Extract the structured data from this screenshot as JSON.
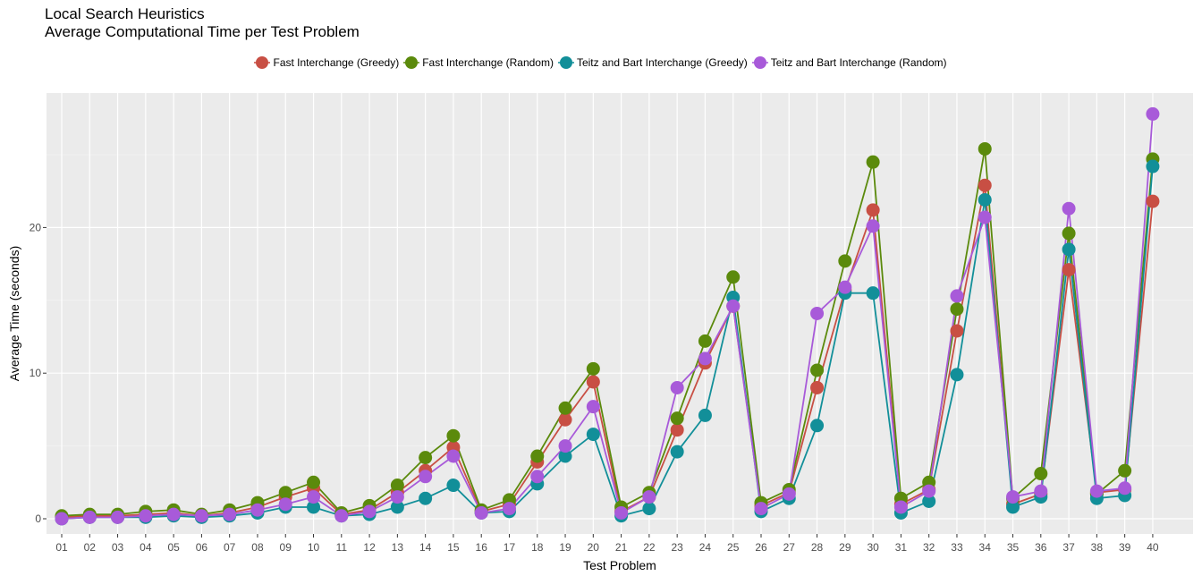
{
  "title_line1": "Local Search Heuristics",
  "title_line2": "Average Computational Time per Test Problem",
  "chart_data": {
    "type": "line",
    "title": "Local Search Heuristics\nAverage Computational Time per Test Problem",
    "xlabel": "Test Problem",
    "ylabel": "Average Time (seconds)",
    "ylim": [
      -1,
      29
    ],
    "yticks": [
      0,
      10,
      20
    ],
    "legend_position": "top",
    "grid": true,
    "categories": [
      "01",
      "02",
      "03",
      "04",
      "05",
      "06",
      "07",
      "08",
      "09",
      "10",
      "11",
      "12",
      "13",
      "14",
      "15",
      "16",
      "17",
      "18",
      "19",
      "20",
      "21",
      "22",
      "23",
      "24",
      "25",
      "26",
      "27",
      "28",
      "29",
      "30",
      "31",
      "32",
      "33",
      "34",
      "35",
      "36",
      "37",
      "38",
      "39",
      "40"
    ],
    "series": [
      {
        "name": "Fast Interchange (Greedy)",
        "color": "#c84f44",
        "values": [
          0.1,
          0.2,
          0.2,
          0.3,
          0.4,
          0.2,
          0.4,
          0.8,
          1.5,
          2.1,
          0.3,
          0.6,
          1.8,
          3.3,
          4.9,
          0.5,
          1.0,
          3.9,
          6.8,
          9.4,
          0.5,
          1.5,
          6.1,
          10.7,
          14.6,
          0.9,
          1.8,
          9.0,
          15.7,
          21.2,
          1.0,
          2.0,
          12.9,
          22.9,
          1.0,
          1.7,
          17.1,
          1.8,
          2.0,
          21.8
        ]
      },
      {
        "name": "Fast Interchange (Random)",
        "color": "#5b8a0c",
        "values": [
          0.2,
          0.3,
          0.3,
          0.5,
          0.6,
          0.3,
          0.6,
          1.1,
          1.8,
          2.5,
          0.4,
          0.9,
          2.3,
          4.2,
          5.7,
          0.6,
          1.3,
          4.3,
          7.6,
          10.3,
          0.8,
          1.8,
          6.9,
          12.2,
          16.6,
          1.1,
          2.0,
          10.2,
          17.7,
          24.5,
          1.4,
          2.5,
          14.4,
          25.4,
          1.4,
          3.1,
          19.6,
          1.7,
          3.3,
          24.7
        ]
      },
      {
        "name": "Teitz and Bart Interchange (Greedy)",
        "color": "#128f99",
        "values": [
          0.0,
          0.1,
          0.1,
          0.1,
          0.2,
          0.1,
          0.2,
          0.4,
          0.8,
          0.8,
          0.2,
          0.3,
          0.8,
          1.4,
          2.3,
          0.4,
          0.5,
          2.4,
          4.3,
          5.8,
          0.2,
          0.7,
          4.6,
          7.1,
          15.2,
          0.5,
          1.4,
          6.4,
          15.5,
          15.5,
          0.4,
          1.2,
          9.9,
          21.9,
          0.8,
          1.5,
          18.5,
          1.4,
          1.6,
          24.2
        ]
      },
      {
        "name": "Teitz and Bart Interchange (Random)",
        "color": "#a85ad9",
        "values": [
          0.0,
          0.1,
          0.1,
          0.2,
          0.3,
          0.2,
          0.3,
          0.6,
          1.0,
          1.5,
          0.2,
          0.5,
          1.5,
          2.9,
          4.3,
          0.4,
          0.7,
          2.9,
          5.0,
          7.7,
          0.4,
          1.5,
          9.0,
          11.0,
          14.6,
          0.7,
          1.7,
          14.1,
          15.9,
          20.1,
          0.8,
          1.9,
          15.3,
          20.7,
          1.5,
          1.9,
          21.3,
          1.9,
          2.1,
          27.8
        ]
      }
    ]
  }
}
